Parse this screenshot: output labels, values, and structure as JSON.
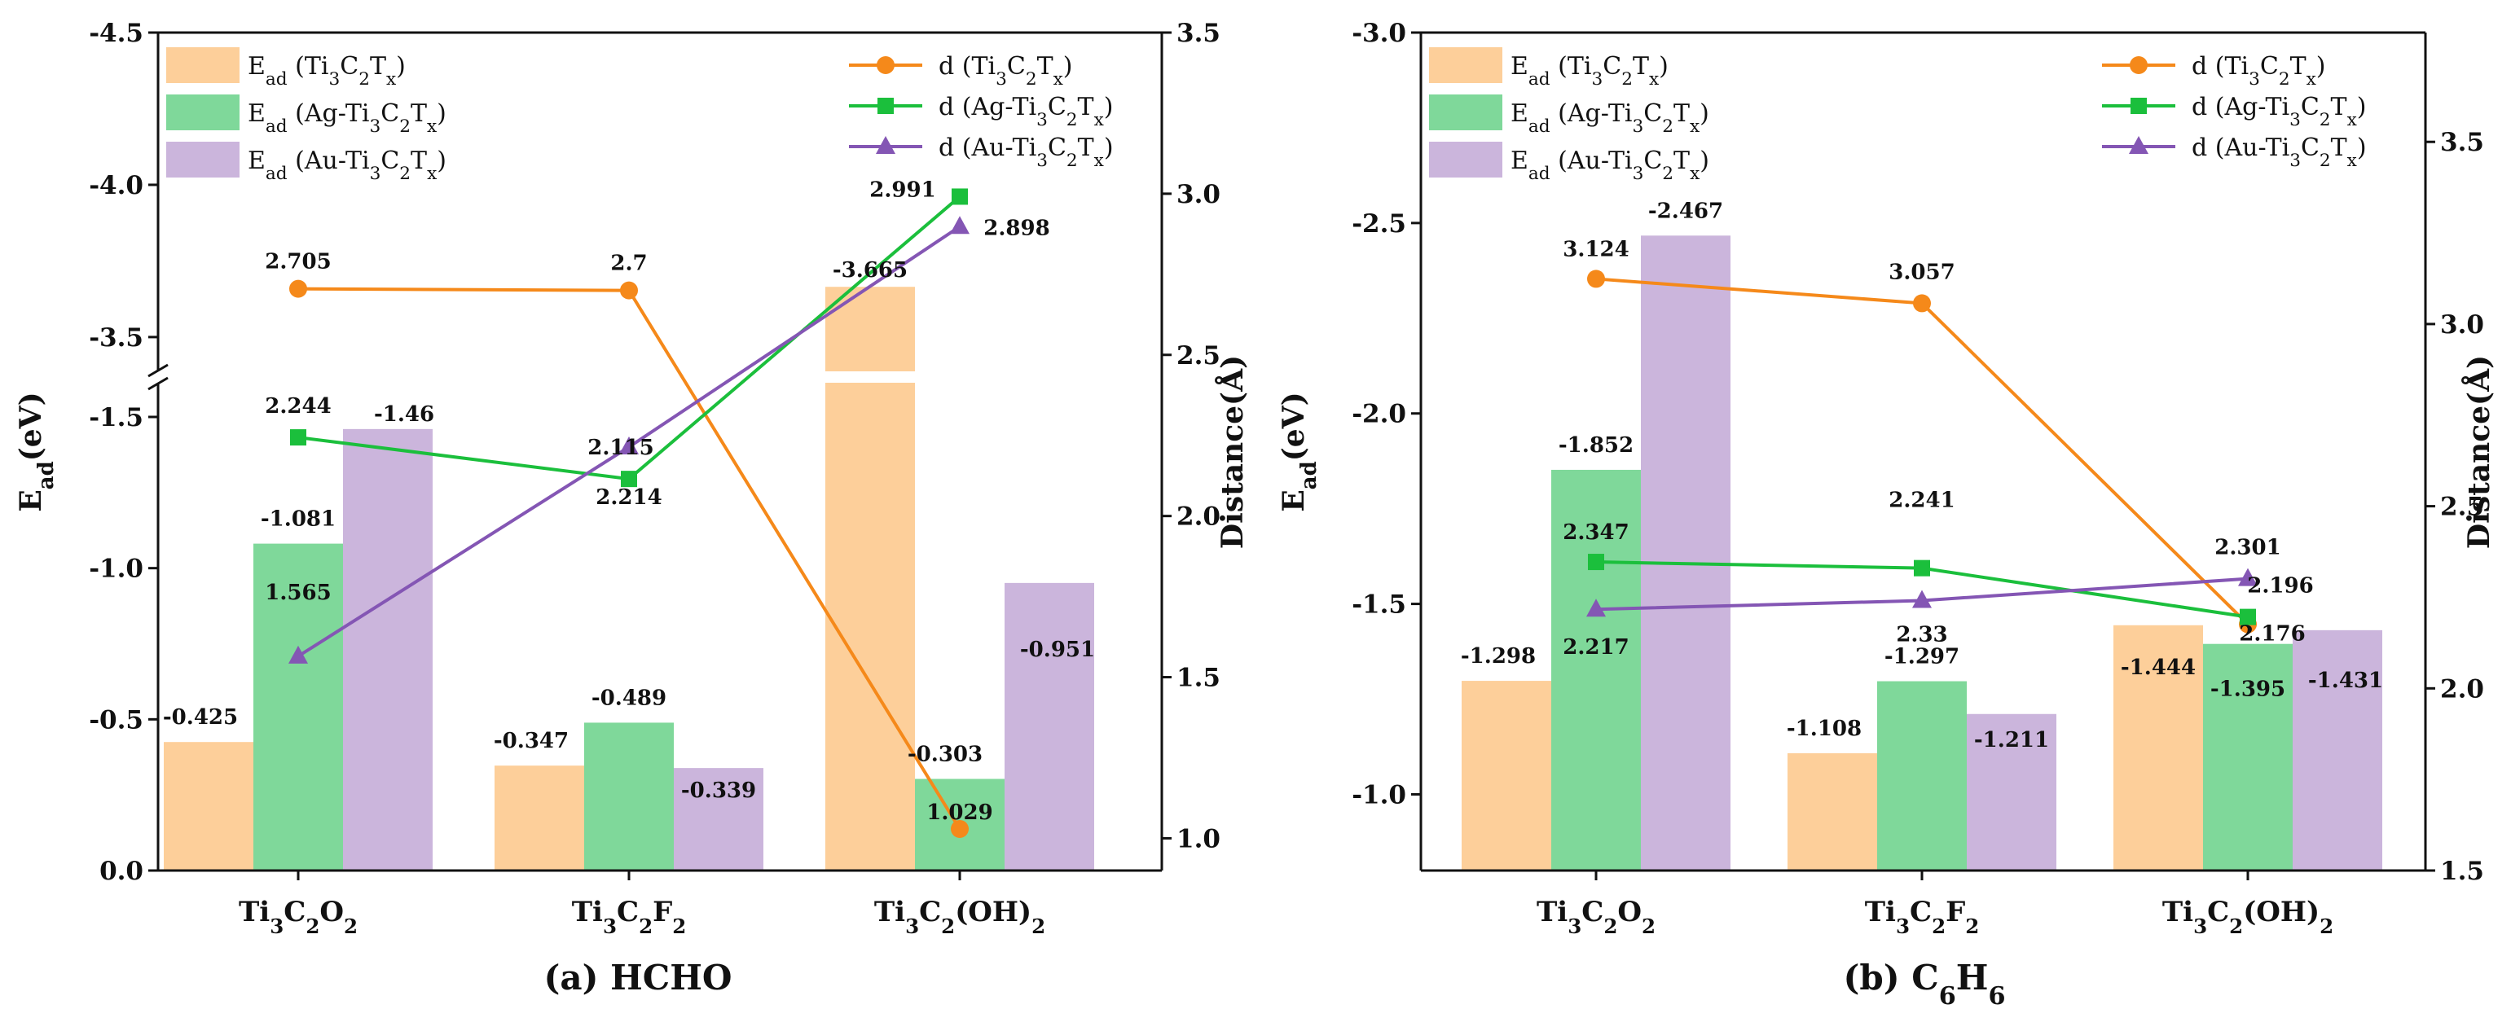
{
  "chart_data": [
    {
      "type": "bar",
      "panel_title": "(a) HCHO",
      "ylabel": "Ead(eV)",
      "y2label": "Distance(Å)",
      "categories": [
        "Ti3C2O2",
        "Ti3C2F2",
        "Ti3C2(OH)2"
      ],
      "y_axis_broken": true,
      "y_lower_range": [
        0,
        -1.5
      ],
      "y_upper_range": [
        -3.35,
        -4.5
      ],
      "y_lower_ticks": [
        "0.0",
        "-0.5",
        "-1.0",
        "-1.5"
      ],
      "y_upper_ticks": [
        "-3.5",
        "-4.0",
        "-4.5"
      ],
      "y2_range": [
        0.9,
        3.5
      ],
      "y2_ticks": [
        "1.0",
        "1.5",
        "2.0",
        "2.5",
        "3.0",
        "3.5"
      ],
      "bar_series": [
        {
          "name": "Ead (Ti3C2Tx)",
          "color": "#fdcf9a",
          "values": [
            -0.425,
            -0.347,
            -3.665
          ],
          "labels": [
            "-0.425",
            "-0.347",
            "-3.665"
          ]
        },
        {
          "name": "Ead (Ag-Ti3C2Tx)",
          "color": "#7fd89a",
          "values": [
            -1.081,
            -0.489,
            -0.303
          ],
          "labels": [
            "-1.081",
            "-0.489",
            "-0.303"
          ]
        },
        {
          "name": "Ead (Au-Ti3C2Tx)",
          "color": "#cbb5dc",
          "values": [
            -1.46,
            -0.339,
            -0.951
          ],
          "labels": [
            "-1.46",
            "-0.339",
            "-0.951"
          ]
        }
      ],
      "line_series": [
        {
          "name": "d (Ti3C2Tx)",
          "color": "#f5891a",
          "marker": "circle",
          "values": [
            2.705,
            2.7,
            1.029
          ],
          "labels": [
            "2.705",
            "2.7",
            "1.029"
          ]
        },
        {
          "name": "d (Ag-Ti3C2Tx)",
          "color": "#1bbf3c",
          "marker": "square",
          "values": [
            2.244,
            2.115,
            2.991
          ],
          "labels": [
            "2.244",
            "2.115",
            "2.991"
          ]
        },
        {
          "name": "d (Au-Ti3C2Tx)",
          "color": "#8456b4",
          "marker": "triangle",
          "values": [
            1.565,
            2.214,
            2.898
          ],
          "labels": [
            "1.565",
            "2.214",
            "2.898"
          ]
        }
      ]
    },
    {
      "type": "bar",
      "panel_title": "(b) C6H6",
      "ylabel": "Ead(eV)",
      "y2label": "Distance(Å)",
      "categories": [
        "Ti3C2O2",
        "Ti3C2F2",
        "Ti3C2(OH)2"
      ],
      "y_axis_broken": false,
      "ylim": [
        -0.8,
        -3.0
      ],
      "y_ticks": [
        "-1.0",
        "-1.5",
        "-2.0",
        "-2.5",
        "-3.0"
      ],
      "y2_range": [
        1.5,
        3.8
      ],
      "y2_ticks": [
        "1.5",
        "2.0",
        "2.5",
        "3.0",
        "3.5"
      ],
      "bar_series": [
        {
          "name": "Ead (Ti3C2Tx)",
          "color": "#fdcf9a",
          "values": [
            -1.298,
            -1.108,
            -1.444
          ],
          "labels": [
            "-1.298",
            "-1.108",
            "-1.444"
          ]
        },
        {
          "name": "Ead (Ag-Ti3C2Tx)",
          "color": "#7fd89a",
          "values": [
            -1.852,
            -1.297,
            -1.395
          ],
          "labels": [
            "-1.852",
            "-1.297",
            "-1.395"
          ]
        },
        {
          "name": "Ead (Au-Ti3C2Tx)",
          "color": "#cbb5dc",
          "values": [
            -2.467,
            -1.211,
            -1.431
          ],
          "labels": [
            "-2.467",
            "-1.211",
            "-1.431"
          ]
        }
      ],
      "line_series": [
        {
          "name": "d (Ti3C2Tx)",
          "color": "#f5891a",
          "marker": "circle",
          "values": [
            3.124,
            3.057,
            2.176
          ],
          "labels": [
            "3.124",
            "3.057",
            "2.176"
          ]
        },
        {
          "name": "d (Ag-Ti3C2Tx)",
          "color": "#1bbf3c",
          "marker": "square",
          "values": [
            2.347,
            2.33,
            2.196
          ],
          "labels": [
            "2.347",
            "2.33",
            "2.196"
          ]
        },
        {
          "name": "d (Au-Ti3C2Tx)",
          "color": "#8456b4",
          "marker": "triangle",
          "values": [
            2.217,
            2.241,
            2.301
          ],
          "labels": [
            "2.217",
            "2.241",
            "2.301"
          ]
        }
      ]
    }
  ]
}
